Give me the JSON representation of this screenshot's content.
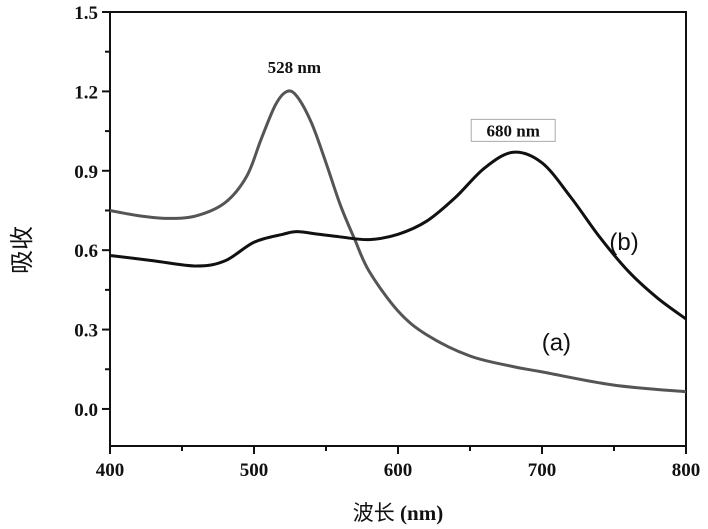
{
  "chart_data": {
    "type": "line",
    "title": "",
    "xlabel_prefix": "波长",
    "xlabel_unit": "(nm)",
    "ylabel": "吸收",
    "xlim": [
      400,
      800
    ],
    "ylim": [
      -0.14,
      1.5
    ],
    "xticks": [
      400,
      500,
      600,
      700,
      800
    ],
    "xtick_labels": [
      "400",
      "500",
      "600",
      "700",
      "800"
    ],
    "yticks": [
      0.0,
      0.3,
      0.6,
      0.9,
      1.2,
      1.5
    ],
    "ytick_labels": [
      "0.0",
      "0.3",
      "0.6",
      "0.9",
      "1.2",
      "1.5"
    ],
    "grid": false,
    "series": [
      {
        "name": "(a)",
        "color": "#555555",
        "x": [
          400,
          420,
          440,
          460,
          480,
          495,
          505,
          515,
          523,
          530,
          540,
          550,
          560,
          570,
          580,
          600,
          620,
          650,
          680,
          700,
          750,
          800
        ],
        "y": [
          0.75,
          0.73,
          0.72,
          0.73,
          0.78,
          0.88,
          1.02,
          1.15,
          1.2,
          1.18,
          1.08,
          0.93,
          0.77,
          0.64,
          0.52,
          0.37,
          0.28,
          0.2,
          0.16,
          0.14,
          0.09,
          0.065
        ]
      },
      {
        "name": "(b)",
        "color": "#111111",
        "x": [
          400,
          430,
          460,
          480,
          500,
          520,
          530,
          545,
          560,
          580,
          600,
          620,
          640,
          660,
          680,
          700,
          720,
          740,
          760,
          780,
          800
        ],
        "y": [
          0.58,
          0.56,
          0.54,
          0.56,
          0.63,
          0.66,
          0.67,
          0.66,
          0.65,
          0.64,
          0.66,
          0.71,
          0.8,
          0.91,
          0.97,
          0.93,
          0.8,
          0.65,
          0.52,
          0.42,
          0.34
        ]
      }
    ],
    "annotations": [
      {
        "text": "528 nm",
        "x": 528,
        "y": 1.27,
        "boxed": false
      },
      {
        "text": "680 nm",
        "x": 680,
        "y": 1.03,
        "boxed": true
      },
      {
        "text": "(b)",
        "x": 757,
        "y": 0.6
      },
      {
        "text": "(a)",
        "x": 710,
        "y": 0.22
      }
    ]
  }
}
